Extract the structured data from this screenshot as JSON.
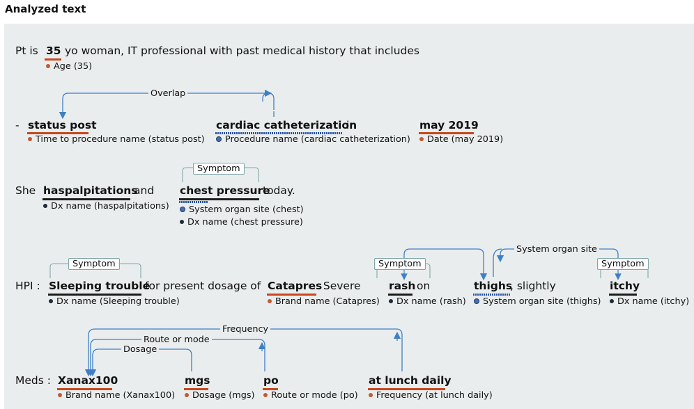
{
  "header": {
    "title": "Analyzed text"
  },
  "line1": {
    "prefix": "Pt is",
    "ent_age": "35",
    "suffix": "yo woman, IT professional with past medical history that includes",
    "ann_age": "Age (35)"
  },
  "line2": {
    "dash": "-",
    "ent_status": "status post",
    "ent_cardiac": "cardiac catheterization",
    "in": "in",
    "ent_date": "may 2019",
    "period": ".",
    "ann_status": "Time to procedure name (status post)",
    "ann_cardiac": "Procedure name (cardiac catheterization)",
    "ann_date": "Date (may 2019)",
    "rel_overlap": "Overlap"
  },
  "line3": {
    "she": "She",
    "ent_haspal": "haspalpitations",
    "and": "and",
    "ent_chest": "chest pressure",
    "today": "today.",
    "ann_haspal": "Dx name (haspalpitations)",
    "ann_chest_site": "System organ site (chest)",
    "ann_chest_dx": "Dx name (chest pressure)",
    "tag_symptom": "Symptom"
  },
  "line4": {
    "hpi": "HPI :",
    "ent_sleep": "Sleeping trouble",
    "mid": "for present dosage of",
    "ent_catapres": "Catapres",
    "severe": ". Severe",
    "ent_rash": "rash",
    "on": "on",
    "ent_thighs": "thighs",
    "slightly": ", slightly",
    "ent_itchy": "itchy",
    "ann_sleep": "Dx name (Sleeping trouble)",
    "ann_catapres": "Brand name (Catapres)",
    "ann_rash": "Dx name (rash)",
    "ann_thighs": "System organ site (thighs)",
    "ann_itchy": "Dx name (itchy)",
    "tag_symptom": "Symptom",
    "rel_site": "System organ site"
  },
  "line5": {
    "meds": "Meds :",
    "ent_xanax": "Xanax100",
    "ent_mgs": "mgs",
    "ent_po": "po",
    "ent_lunch": "at lunch daily",
    "comma": ",",
    "ann_xanax": "Brand name (Xanax100)",
    "ann_mgs": "Dosage (mgs)",
    "ann_po": "Route or mode (po)",
    "ann_lunch": "Frequency (at lunch daily)",
    "rel_frequency": "Frequency",
    "rel_route": "Route or mode",
    "rel_dosage": "Dosage"
  },
  "colors": {
    "red_underline": "#c7471c",
    "blue_arrow": "#3f7fc4",
    "panel_bg": "#eaedee",
    "tag_border": "#7fa7a8"
  }
}
